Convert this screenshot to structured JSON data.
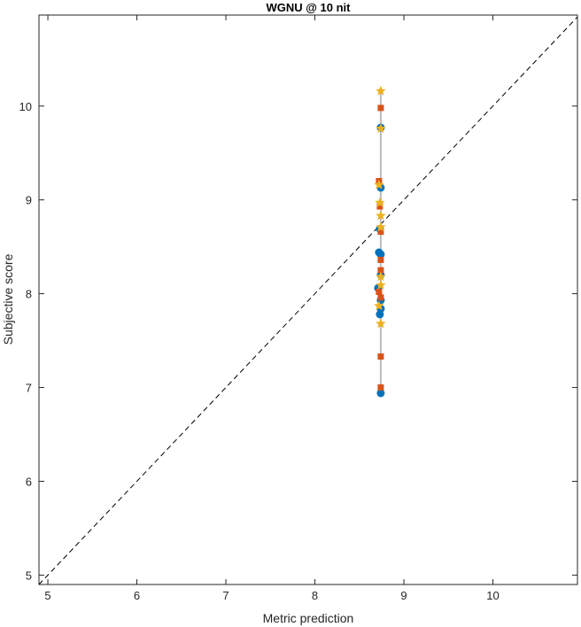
{
  "chart_data": {
    "type": "scatter",
    "title": "WGNU @ 10 nit",
    "xlabel": "Metric prediction",
    "ylabel": "Subjective score",
    "xlim": [
      4.9,
      10.95
    ],
    "ylim": [
      4.9,
      10.97
    ],
    "xticks": [
      5,
      6,
      7,
      8,
      9,
      10
    ],
    "yticks": [
      5,
      6,
      7,
      8,
      9,
      10
    ],
    "grid": false,
    "reference_line": "y = x (dashed)",
    "range_line": {
      "x": 8.74,
      "y": [
        6.94,
        10.16
      ],
      "color": "#BBBBBB"
    },
    "series": [
      {
        "marker": "circle",
        "color": "#0072BD",
        "x": [
          8.74,
          8.74,
          8.73,
          8.72,
          8.74,
          8.74,
          8.71,
          8.74,
          8.74,
          8.73,
          8.74
        ],
        "y": [
          9.77,
          9.13,
          8.69,
          8.44,
          8.42,
          8.2,
          8.06,
          7.93,
          7.84,
          7.78,
          6.94
        ]
      },
      {
        "marker": "square",
        "color": "#D95319",
        "x": [
          8.74,
          8.72,
          8.73,
          8.74,
          8.74,
          8.74,
          8.72,
          8.74,
          8.74,
          8.74
        ],
        "y": [
          9.98,
          9.2,
          8.93,
          8.66,
          8.36,
          8.25,
          8.02,
          7.96,
          7.33,
          7.0
        ]
      },
      {
        "marker": "star",
        "color": "#EDB120",
        "x": [
          8.74,
          8.74,
          8.72,
          8.73,
          8.74,
          8.74,
          8.74,
          8.74,
          8.72,
          8.74
        ],
        "y": [
          10.16,
          9.76,
          9.16,
          8.97,
          8.83,
          8.71,
          8.18,
          8.09,
          7.87,
          7.68
        ]
      }
    ]
  }
}
